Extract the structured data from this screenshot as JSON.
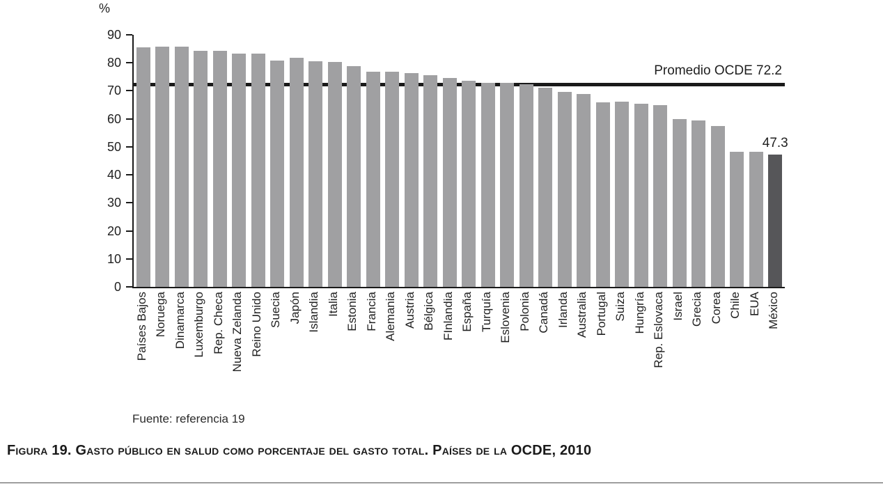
{
  "chart_data": {
    "type": "bar",
    "title": "",
    "xlabel": "",
    "ylabel": "%",
    "ylim": [
      0,
      90
    ],
    "yticks": [
      0,
      10,
      20,
      30,
      40,
      50,
      60,
      70,
      80,
      90
    ],
    "grid": false,
    "legend": "none",
    "categories": [
      "Países Bajos",
      "Noruega",
      "Dinamarca",
      "Luxemburgo",
      "Rep. Checa",
      "Nueva Zelanda",
      "Reino Unido",
      "Suecia",
      "Japón",
      "Islandia",
      "Italia",
      "Estonia",
      "Francia",
      "Alemania",
      "Austria",
      "Bélgica",
      "FInlandia",
      "España",
      "Turquía",
      "Eslovenia",
      "Polonia",
      "Canadá",
      "Irlanda",
      "Australia",
      "Portugal",
      "Suiza",
      "Hungría",
      "Rep. Eslovaca",
      "Israel",
      "Grecia",
      "Corea",
      "Chile",
      "EUA",
      "México"
    ],
    "values": [
      85.5,
      85.7,
      85.7,
      84.3,
      84.2,
      83.2,
      83.2,
      80.9,
      81.7,
      80.6,
      80.2,
      78.7,
      76.9,
      76.8,
      76.3,
      75.5,
      74.5,
      73.6,
      72.9,
      72.8,
      72.3,
      71.1,
      69.5,
      68.9,
      65.8,
      66.2,
      65.3,
      64.8,
      60.0,
      59.4,
      57.4,
      48.2,
      48.2,
      47.3
    ],
    "highlight_category": "México",
    "highlight_value_label": "47.3",
    "reference_line": {
      "value": 72.2,
      "label": "Promedio OCDE 72.2"
    },
    "bar_color": "#a0a0a2",
    "highlight_color": "#565659",
    "reference_line_color": "#1a1a1a"
  },
  "source": "Fuente: referencia 19",
  "caption": "Figura 19. Gasto público en salud como porcentaje del gasto total. Países de la OCDE, 2010"
}
